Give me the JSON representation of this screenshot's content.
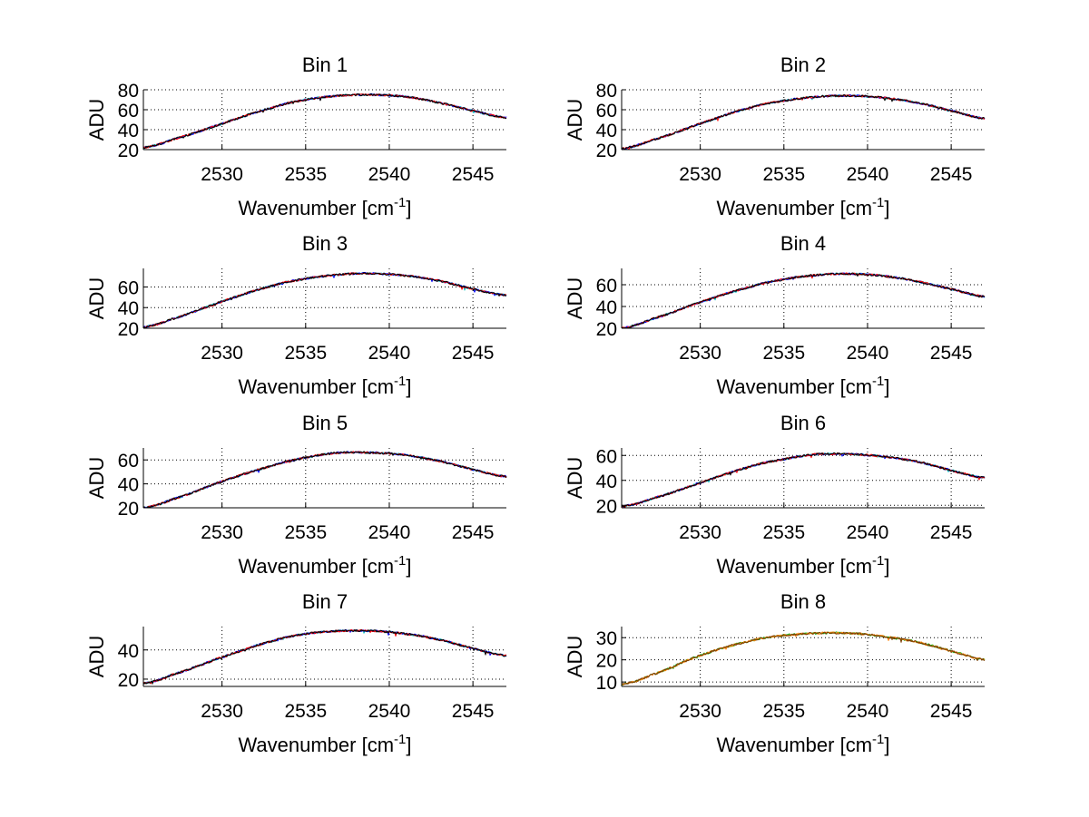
{
  "colors": {
    "background": "#ffffff",
    "axes": "#000000",
    "series": [
      "#0000ff",
      "#00aa00",
      "#ff0000",
      "#00bfbf",
      "#bf00bf",
      "#ff8000",
      "#000000"
    ]
  },
  "chart_data": [
    {
      "type": "line",
      "title": "Bin 1",
      "xlabel": "Wavenumber [cm",
      "xlabel_sup": "-1",
      "xlabel_end": "]",
      "ylabel": "ADU",
      "xlim": [
        2525.3,
        2547
      ],
      "ylim": [
        20,
        80
      ],
      "xticks": [
        2530,
        2535,
        2540,
        2545
      ],
      "yticks": [
        20,
        40,
        60,
        80
      ],
      "curve": {
        "x": [
          2525.3,
          2527,
          2530,
          2533,
          2535,
          2537,
          2539,
          2541,
          2543,
          2545,
          2547
        ],
        "y": [
          22,
          30,
          46,
          62,
          70,
          74,
          75,
          73,
          67,
          59,
          52
        ]
      }
    },
    {
      "type": "line",
      "title": "Bin 2",
      "xlabel": "Wavenumber [cm",
      "xlabel_sup": "-1",
      "xlabel_end": "]",
      "ylabel": "ADU",
      "xlim": [
        2525.3,
        2547
      ],
      "ylim": [
        20,
        80
      ],
      "xticks": [
        2530,
        2535,
        2540,
        2545
      ],
      "yticks": [
        20,
        40,
        60,
        80
      ],
      "curve": {
        "x": [
          2525.3,
          2527,
          2530,
          2533,
          2535,
          2537,
          2539,
          2541,
          2543,
          2545,
          2547
        ],
        "y": [
          21,
          29,
          46,
          62,
          69,
          73,
          74,
          72,
          67,
          59,
          51
        ]
      }
    },
    {
      "type": "line",
      "title": "Bin 3",
      "xlabel": "Wavenumber [cm",
      "xlabel_sup": "-1",
      "xlabel_end": "]",
      "ylabel": "ADU",
      "xlim": [
        2525.3,
        2547
      ],
      "ylim": [
        20,
        78
      ],
      "xticks": [
        2530,
        2535,
        2540,
        2545
      ],
      "yticks": [
        20,
        40,
        60
      ],
      "curve": {
        "x": [
          2525.3,
          2527,
          2530,
          2533,
          2535,
          2537,
          2539,
          2541,
          2543,
          2545,
          2547
        ],
        "y": [
          21,
          29,
          46,
          61,
          68,
          72,
          73,
          71,
          66,
          58,
          52
        ]
      }
    },
    {
      "type": "line",
      "title": "Bin 4",
      "xlabel": "Wavenumber [cm",
      "xlabel_sup": "-1",
      "xlabel_end": "]",
      "ylabel": "ADU",
      "xlim": [
        2525.3,
        2547
      ],
      "ylim": [
        20,
        75
      ],
      "xticks": [
        2530,
        2535,
        2540,
        2545
      ],
      "yticks": [
        20,
        40,
        60
      ],
      "curve": {
        "x": [
          2525.3,
          2527,
          2530,
          2533,
          2535,
          2537,
          2539,
          2541,
          2543,
          2545,
          2547
        ],
        "y": [
          20,
          28,
          44,
          58,
          65,
          69,
          70,
          68,
          63,
          56,
          49
        ]
      }
    },
    {
      "type": "line",
      "title": "Bin 5",
      "xlabel": "Wavenumber [cm",
      "xlabel_sup": "-1",
      "xlabel_end": "]",
      "ylabel": "ADU",
      "xlim": [
        2525.3,
        2547
      ],
      "ylim": [
        20,
        70
      ],
      "xticks": [
        2530,
        2535,
        2540,
        2545
      ],
      "yticks": [
        20,
        40,
        60
      ],
      "curve": {
        "x": [
          2525.3,
          2527,
          2530,
          2533,
          2535,
          2537,
          2539,
          2541,
          2543,
          2545,
          2547
        ],
        "y": [
          20,
          27,
          42,
          55,
          62,
          66,
          66,
          64,
          59,
          52,
          46
        ]
      }
    },
    {
      "type": "line",
      "title": "Bin 6",
      "xlabel": "Wavenumber [cm",
      "xlabel_sup": "-1",
      "xlabel_end": "]",
      "ylabel": "ADU",
      "xlim": [
        2525.3,
        2547
      ],
      "ylim": [
        18,
        66
      ],
      "xticks": [
        2530,
        2535,
        2540,
        2545
      ],
      "yticks": [
        20,
        40,
        60
      ],
      "curve": {
        "x": [
          2525.3,
          2527,
          2530,
          2533,
          2535,
          2537,
          2539,
          2541,
          2543,
          2545,
          2547
        ],
        "y": [
          19,
          25,
          38,
          51,
          57,
          61,
          61,
          59,
          55,
          48,
          42
        ]
      }
    },
    {
      "type": "line",
      "title": "Bin 7",
      "xlabel": "Wavenumber [cm",
      "xlabel_sup": "-1",
      "xlabel_end": "]",
      "ylabel": "ADU",
      "xlim": [
        2525.3,
        2547
      ],
      "ylim": [
        15,
        56
      ],
      "xticks": [
        2530,
        2535,
        2540,
        2545
      ],
      "yticks": [
        20,
        40
      ],
      "curve": {
        "x": [
          2525.3,
          2527,
          2530,
          2533,
          2535,
          2537,
          2539,
          2541,
          2543,
          2545,
          2547
        ],
        "y": [
          17,
          23,
          35,
          46,
          51,
          53,
          53,
          51,
          47,
          41,
          36
        ]
      }
    },
    {
      "type": "line",
      "title": "Bin 8",
      "xlabel": "Wavenumber [cm",
      "xlabel_sup": "-1",
      "xlabel_end": "]",
      "ylabel": "ADU",
      "xlim": [
        2525.3,
        2547
      ],
      "ylim": [
        8,
        35
      ],
      "xticks": [
        2530,
        2535,
        2540,
        2545
      ],
      "yticks": [
        10,
        20,
        30
      ],
      "curve": {
        "x": [
          2525.3,
          2527,
          2530,
          2533,
          2535,
          2537,
          2539,
          2541,
          2543,
          2545,
          2547
        ],
        "y": [
          9,
          13,
          22,
          28.5,
          31,
          32,
          32,
          30.5,
          28,
          24,
          20
        ]
      }
    }
  ]
}
